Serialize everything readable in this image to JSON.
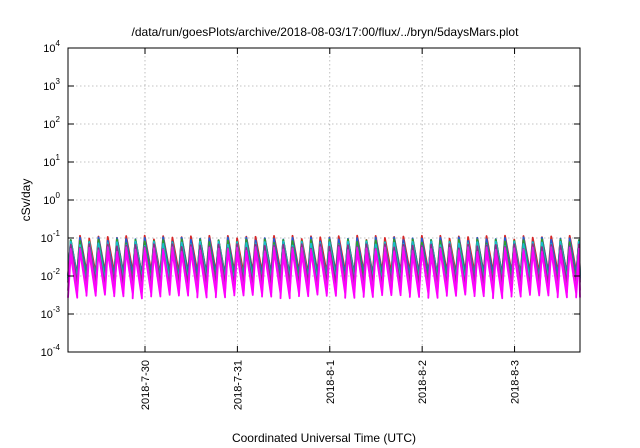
{
  "chart_data": {
    "type": "line",
    "title": "/data/run/goesPlots/archive/2018-08-03/17:00/flux/../bryn/5daysMars.plot",
    "xlabel": "Coordinated Universal Time (UTC)",
    "ylabel": "cSv/day",
    "yscale": "log",
    "ylim": [
      0.0001,
      10000
    ],
    "y_ticks": [
      {
        "mantissa": "10",
        "exp": "-4"
      },
      {
        "mantissa": "10",
        "exp": "-3"
      },
      {
        "mantissa": "10",
        "exp": "-2"
      },
      {
        "mantissa": "10",
        "exp": "-1"
      },
      {
        "mantissa": "10",
        "exp": "0"
      },
      {
        "mantissa": "10",
        "exp": "1"
      },
      {
        "mantissa": "10",
        "exp": "2"
      },
      {
        "mantissa": "10",
        "exp": "3"
      },
      {
        "mantissa": "10",
        "exp": "4"
      }
    ],
    "x_ticks": [
      "2018-7-30",
      "2018-7-31",
      "2018-8-1",
      "2018-8-2",
      "2018-8-3"
    ],
    "xlim": [
      "2018-07-29T04:00",
      "2018-08-03T17:00"
    ],
    "grid": true,
    "legend": "none",
    "pattern": {
      "description": "sawtooth oscillation, ~10 cycles per day",
      "cycles_per_day": 10,
      "series_peak_values": [
        0.1,
        0.09,
        0.08,
        0.07,
        0.06,
        0.05,
        0.04
      ],
      "series_trough_values": [
        0.012,
        0.01,
        0.008,
        0.007,
        0.006,
        0.004,
        0.003
      ]
    },
    "series_colors": [
      "#d62728",
      "#1f5fd6",
      "#2ca02c",
      "#17becf",
      "#8c2d8c",
      "#e020e0",
      "#ff00ff"
    ]
  }
}
